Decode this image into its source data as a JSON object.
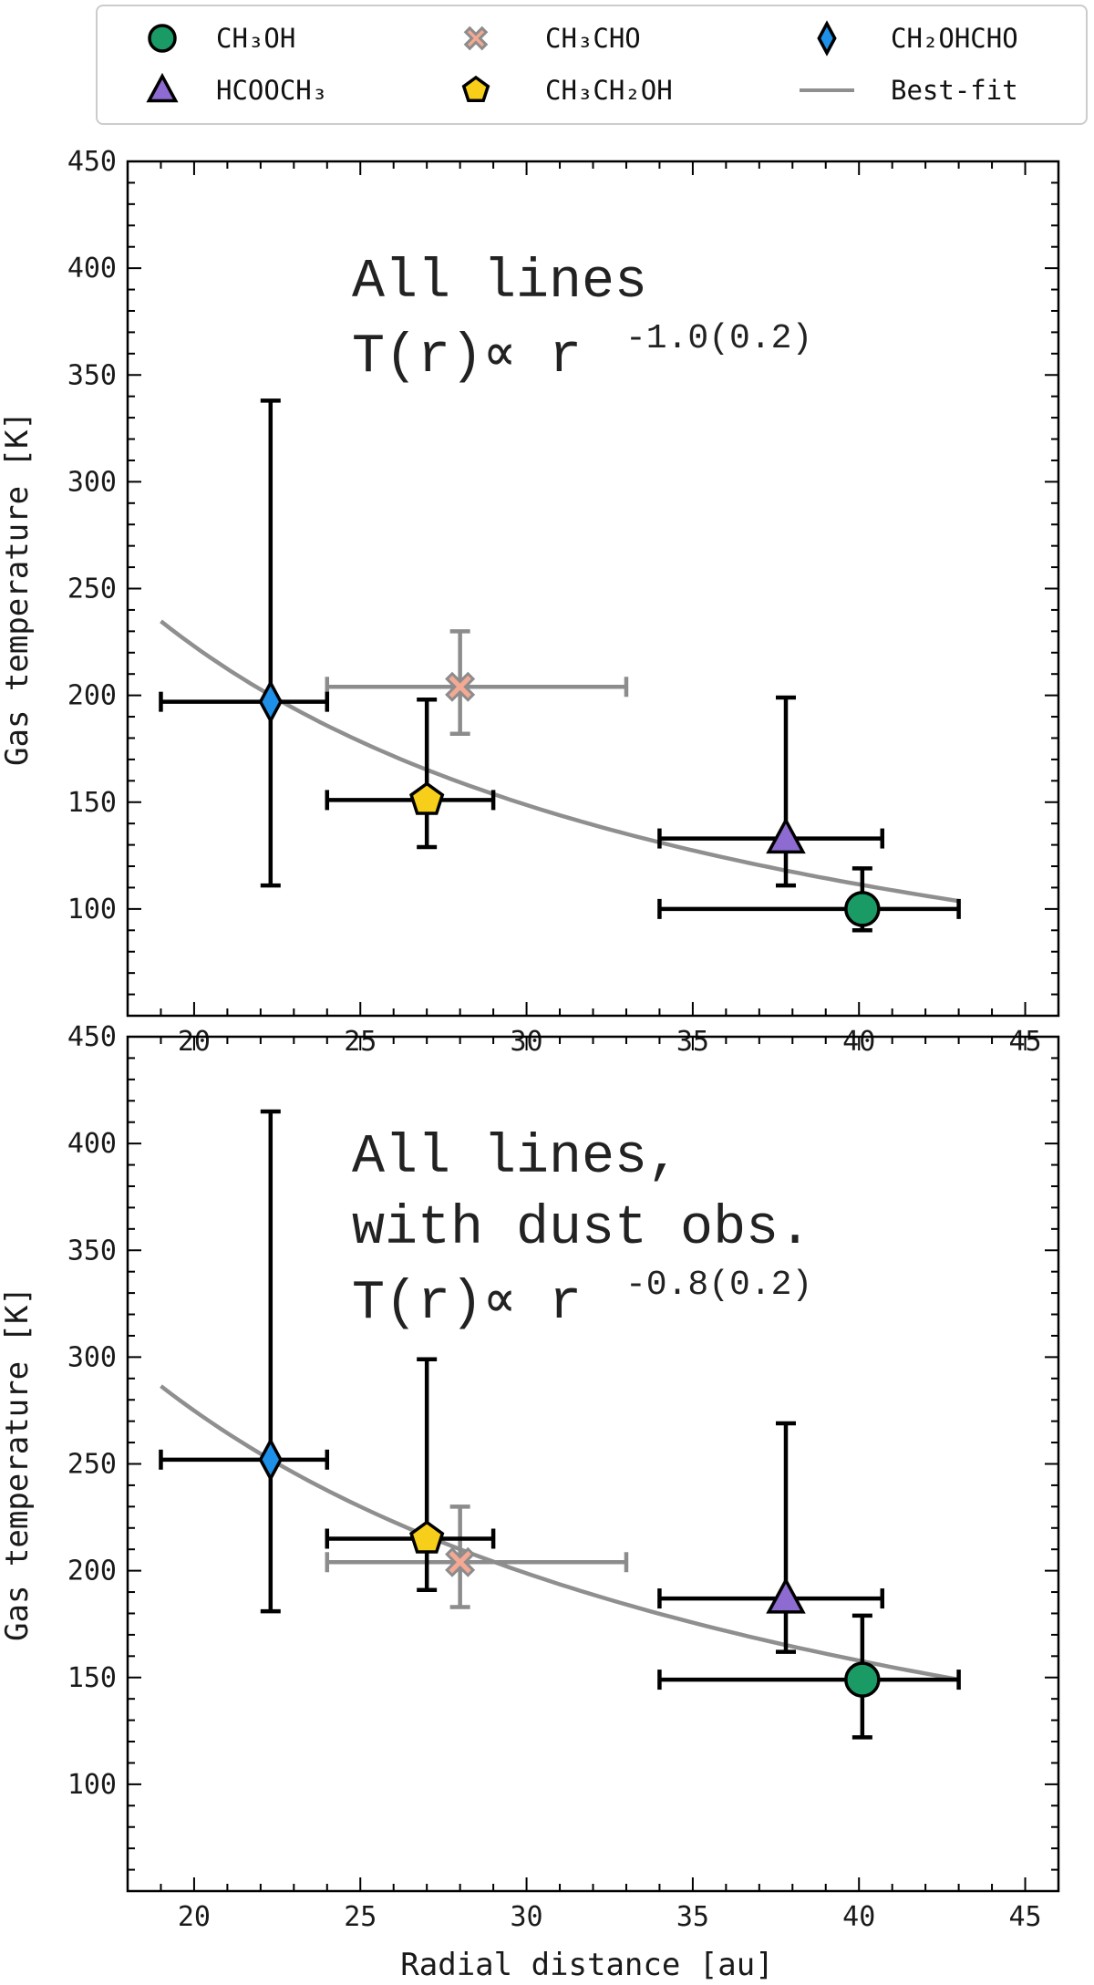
{
  "chart_data": [
    {
      "type": "scatter",
      "panel": "top",
      "xlim": [
        18,
        46
      ],
      "ylim": [
        50,
        450
      ],
      "xticks": [
        20,
        25,
        30,
        35,
        40,
        45
      ],
      "yticks": [
        100,
        150,
        200,
        250,
        300,
        350,
        400,
        450
      ],
      "xlabel": "",
      "ylabel": "Gas temperature [K]",
      "annotation_lines": [
        "All lines"
      ],
      "fit_label": "T(r)∝ r",
      "fit_exponent": "-1.0(0.2)",
      "fit": {
        "A": 200,
        "r0": 22.3,
        "exponent": -1.0,
        "x_range": [
          19,
          43
        ]
      },
      "points": [
        {
          "series": "CH₃OH",
          "x": 40.1,
          "y": 100,
          "xerr": [
            34.0,
            43.0
          ],
          "yerr": [
            90,
            119
          ]
        },
        {
          "series": "CH₃CHO",
          "x": 28.0,
          "y": 204,
          "xerr": [
            24.0,
            33.0
          ],
          "yerr": [
            182,
            230
          ]
        },
        {
          "series": "CH₂OHCHO",
          "x": 22.3,
          "y": 197,
          "xerr": [
            19.0,
            24.0
          ],
          "yerr": [
            111,
            338
          ]
        },
        {
          "series": "HCOOCH₃",
          "x": 37.8,
          "y": 133,
          "xerr": [
            34.0,
            40.7
          ],
          "yerr": [
            111,
            199
          ]
        },
        {
          "series": "CH₃CH₂OH",
          "x": 27.0,
          "y": 151,
          "xerr": [
            24.0,
            29.0
          ],
          "yerr": [
            129,
            198
          ]
        }
      ]
    },
    {
      "type": "scatter",
      "panel": "bottom",
      "xlim": [
        18,
        46
      ],
      "ylim": [
        50,
        450
      ],
      "xticks": [
        20,
        25,
        30,
        35,
        40,
        45
      ],
      "yticks": [
        100,
        150,
        200,
        250,
        300,
        350,
        400,
        450
      ],
      "xlabel": "Radial distance [au]",
      "ylabel": "Gas temperature [K]",
      "annotation_lines": [
        "All lines,",
        "with dust obs."
      ],
      "fit_label": "T(r)∝ r",
      "fit_exponent": "-0.8(0.2)",
      "fit": {
        "A": 252,
        "r0": 22.3,
        "exponent": -0.8,
        "x_range": [
          19,
          43
        ]
      },
      "points": [
        {
          "series": "CH₃OH",
          "x": 40.1,
          "y": 149,
          "xerr": [
            34.0,
            43.0
          ],
          "yerr": [
            122,
            179
          ]
        },
        {
          "series": "CH₃CHO",
          "x": 28.0,
          "y": 204,
          "xerr": [
            24.0,
            33.0
          ],
          "yerr": [
            183,
            230
          ]
        },
        {
          "series": "CH₂OHCHO",
          "x": 22.3,
          "y": 252,
          "xerr": [
            19.0,
            24.0
          ],
          "yerr": [
            181,
            415
          ]
        },
        {
          "series": "HCOOCH₃",
          "x": 37.8,
          "y": 187,
          "xerr": [
            34.0,
            40.7
          ],
          "yerr": [
            162,
            269
          ]
        },
        {
          "series": "CH₃CH₂OH",
          "x": 27.0,
          "y": 215,
          "xerr": [
            24.0,
            29.0
          ],
          "yerr": [
            191,
            299
          ]
        }
      ]
    }
  ],
  "legend": {
    "placement": "top",
    "entries": [
      {
        "label": "CH₃OH",
        "marker": "circle",
        "color": "#1a9a64",
        "errorbar_color": "#000000"
      },
      {
        "label": "CH₃CHO",
        "marker": "x",
        "color": "#f3a993",
        "errorbar_color": "#8c8c8c"
      },
      {
        "label": "CH₂OHCHO",
        "marker": "diamond",
        "color": "#1e90e8",
        "errorbar_color": "#000000"
      },
      {
        "label": "HCOOCH₃",
        "marker": "triangle",
        "color": "#8d6bd1",
        "errorbar_color": "#000000"
      },
      {
        "label": "CH₃CH₂OH",
        "marker": "pentagon",
        "color": "#f7cf1a",
        "errorbar_color": "#000000"
      },
      {
        "label": "Best-fit",
        "marker": "line",
        "color": "#8f8f8f",
        "errorbar_color": "#8f8f8f"
      }
    ]
  }
}
